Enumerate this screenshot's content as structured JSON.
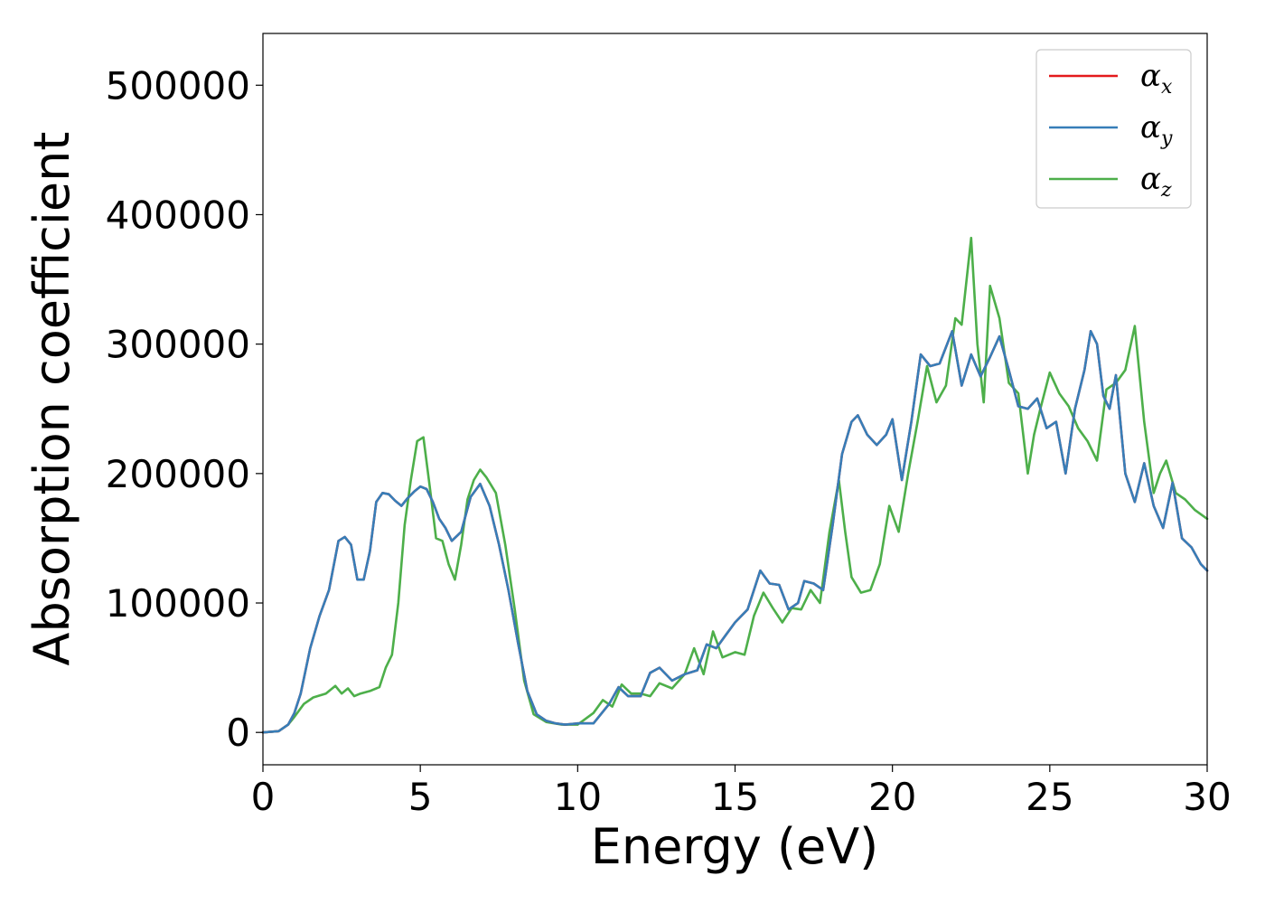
{
  "chart_data": {
    "type": "line",
    "xlabel": "Energy (eV)",
    "ylabel": "Absorption coefficient",
    "xlim": [
      0,
      30
    ],
    "ylim": [
      -25000,
      540000
    ],
    "x_ticks": [
      "0",
      "5",
      "10",
      "15",
      "20",
      "25",
      "30"
    ],
    "y_ticks": [
      "0",
      "100000",
      "200000",
      "300000",
      "400000",
      "500000"
    ],
    "grid": false,
    "legend_position": "top-right",
    "series": [
      {
        "name": "α_x",
        "legend_symbol": "α",
        "legend_subscript": "x",
        "color": "#e41a1c",
        "x": [
          0,
          0.5,
          0.8,
          1.0,
          1.2,
          1.5,
          1.8,
          2.1,
          2.4,
          2.6,
          2.8,
          3.0,
          3.2,
          3.4,
          3.6,
          3.8,
          4.0,
          4.2,
          4.4,
          4.6,
          4.8,
          5.0,
          5.2,
          5.4,
          5.6,
          5.8,
          6.0,
          6.3,
          6.6,
          6.9,
          7.2,
          7.5,
          7.8,
          8.1,
          8.4,
          8.7,
          9.0,
          9.3,
          9.6,
          10.0,
          10.5,
          11.0,
          11.3,
          11.6,
          12.0,
          12.3,
          12.6,
          13.0,
          13.4,
          13.8,
          14.1,
          14.4,
          14.7,
          15.0,
          15.4,
          15.8,
          16.1,
          16.4,
          16.7,
          17.0,
          17.2,
          17.5,
          17.8,
          18.1,
          18.4,
          18.7,
          18.9,
          19.2,
          19.5,
          19.8,
          20.0,
          20.3,
          20.6,
          20.9,
          21.2,
          21.5,
          21.9,
          22.2,
          22.5,
          22.8,
          23.1,
          23.4,
          23.7,
          24.0,
          24.3,
          24.6,
          24.9,
          25.2,
          25.5,
          25.8,
          26.1,
          26.3,
          26.5,
          26.7,
          26.9,
          27.1,
          27.4,
          27.7,
          28.0,
          28.3,
          28.6,
          28.9,
          29.2,
          29.5,
          29.8,
          30.0
        ],
        "y": [
          0,
          1000,
          6000,
          15000,
          30000,
          65000,
          90000,
          110000,
          148000,
          151000,
          145000,
          118000,
          118000,
          140000,
          178000,
          185000,
          184000,
          179000,
          175000,
          181000,
          186000,
          190000,
          188000,
          178000,
          165000,
          158000,
          148000,
          155000,
          182000,
          192000,
          175000,
          145000,
          110000,
          70000,
          32000,
          14000,
          9000,
          7000,
          6000,
          7000,
          7000,
          22000,
          35000,
          28000,
          28000,
          46000,
          50000,
          40000,
          45000,
          48000,
          68000,
          65000,
          75000,
          85000,
          95000,
          125000,
          115000,
          114000,
          95000,
          100000,
          117000,
          115000,
          110000,
          160000,
          215000,
          240000,
          245000,
          230000,
          222000,
          230000,
          242000,
          195000,
          240000,
          292000,
          283000,
          285000,
          310000,
          268000,
          292000,
          275000,
          290000,
          306000,
          280000,
          252000,
          250000,
          258000,
          235000,
          240000,
          200000,
          250000,
          280000,
          310000,
          300000,
          260000,
          250000,
          276000,
          200000,
          178000,
          208000,
          175000,
          158000,
          193000,
          150000,
          143000,
          130000,
          125000
        ]
      },
      {
        "name": "α_y",
        "legend_symbol": "α",
        "legend_subscript": "y",
        "color": "#377eb8",
        "x": [
          0,
          0.5,
          0.8,
          1.0,
          1.2,
          1.5,
          1.8,
          2.1,
          2.4,
          2.6,
          2.8,
          3.0,
          3.2,
          3.4,
          3.6,
          3.8,
          4.0,
          4.2,
          4.4,
          4.6,
          4.8,
          5.0,
          5.2,
          5.4,
          5.6,
          5.8,
          6.0,
          6.3,
          6.6,
          6.9,
          7.2,
          7.5,
          7.8,
          8.1,
          8.4,
          8.7,
          9.0,
          9.3,
          9.6,
          10.0,
          10.5,
          11.0,
          11.3,
          11.6,
          12.0,
          12.3,
          12.6,
          13.0,
          13.4,
          13.8,
          14.1,
          14.4,
          14.7,
          15.0,
          15.4,
          15.8,
          16.1,
          16.4,
          16.7,
          17.0,
          17.2,
          17.5,
          17.8,
          18.1,
          18.4,
          18.7,
          18.9,
          19.2,
          19.5,
          19.8,
          20.0,
          20.3,
          20.6,
          20.9,
          21.2,
          21.5,
          21.9,
          22.2,
          22.5,
          22.8,
          23.1,
          23.4,
          23.7,
          24.0,
          24.3,
          24.6,
          24.9,
          25.2,
          25.5,
          25.8,
          26.1,
          26.3,
          26.5,
          26.7,
          26.9,
          27.1,
          27.4,
          27.7,
          28.0,
          28.3,
          28.6,
          28.9,
          29.2,
          29.5,
          29.8,
          30.0
        ],
        "y": [
          0,
          1000,
          6000,
          15000,
          30000,
          65000,
          90000,
          110000,
          148000,
          151000,
          145000,
          118000,
          118000,
          140000,
          178000,
          185000,
          184000,
          179000,
          175000,
          181000,
          186000,
          190000,
          188000,
          178000,
          165000,
          158000,
          148000,
          155000,
          182000,
          192000,
          175000,
          145000,
          110000,
          70000,
          32000,
          14000,
          9000,
          7000,
          6000,
          7000,
          7000,
          22000,
          35000,
          28000,
          28000,
          46000,
          50000,
          40000,
          45000,
          48000,
          68000,
          65000,
          75000,
          85000,
          95000,
          125000,
          115000,
          114000,
          95000,
          100000,
          117000,
          115000,
          110000,
          160000,
          215000,
          240000,
          245000,
          230000,
          222000,
          230000,
          242000,
          195000,
          240000,
          292000,
          283000,
          285000,
          310000,
          268000,
          292000,
          275000,
          290000,
          306000,
          280000,
          252000,
          250000,
          258000,
          235000,
          240000,
          200000,
          250000,
          280000,
          310000,
          300000,
          260000,
          250000,
          276000,
          200000,
          178000,
          208000,
          175000,
          158000,
          193000,
          150000,
          143000,
          130000,
          125000
        ]
      },
      {
        "name": "α_z",
        "legend_symbol": "α",
        "legend_subscript": "z",
        "color": "#4daf4a",
        "x": [
          0,
          0.5,
          0.8,
          1.0,
          1.3,
          1.6,
          2.0,
          2.3,
          2.5,
          2.7,
          2.9,
          3.1,
          3.4,
          3.7,
          3.9,
          4.1,
          4.3,
          4.5,
          4.7,
          4.9,
          5.1,
          5.3,
          5.5,
          5.7,
          5.9,
          6.1,
          6.3,
          6.5,
          6.7,
          6.9,
          7.1,
          7.4,
          7.7,
          8.0,
          8.3,
          8.6,
          9.0,
          9.5,
          10.0,
          10.5,
          10.8,
          11.1,
          11.4,
          11.7,
          12.0,
          12.3,
          12.6,
          13.0,
          13.4,
          13.7,
          14.0,
          14.3,
          14.6,
          15.0,
          15.3,
          15.6,
          15.9,
          16.2,
          16.5,
          16.8,
          17.1,
          17.4,
          17.7,
          18.0,
          18.3,
          18.5,
          18.7,
          19.0,
          19.3,
          19.6,
          19.9,
          20.2,
          20.5,
          20.8,
          21.1,
          21.4,
          21.7,
          22.0,
          22.2,
          22.5,
          22.7,
          22.9,
          23.1,
          23.4,
          23.7,
          24.0,
          24.3,
          24.5,
          24.7,
          25.0,
          25.3,
          25.6,
          25.9,
          26.2,
          26.5,
          26.8,
          27.1,
          27.4,
          27.7,
          28.0,
          28.3,
          28.5,
          28.7,
          29.0,
          29.3,
          29.6,
          30.0
        ],
        "y": [
          0,
          1000,
          6000,
          12000,
          22000,
          27000,
          30000,
          36000,
          30000,
          34000,
          28000,
          30000,
          32000,
          35000,
          50000,
          60000,
          100000,
          160000,
          195000,
          225000,
          228000,
          190000,
          150000,
          148000,
          130000,
          118000,
          145000,
          180000,
          195000,
          203000,
          197000,
          185000,
          145000,
          95000,
          40000,
          14000,
          8000,
          6000,
          6000,
          15000,
          25000,
          20000,
          37000,
          30000,
          30000,
          28000,
          38000,
          34000,
          45000,
          65000,
          45000,
          78000,
          58000,
          62000,
          60000,
          90000,
          108000,
          96000,
          85000,
          96000,
          95000,
          110000,
          100000,
          155000,
          195000,
          155000,
          120000,
          108000,
          110000,
          130000,
          175000,
          155000,
          200000,
          240000,
          283000,
          255000,
          268000,
          320000,
          315000,
          382000,
          300000,
          255000,
          345000,
          320000,
          270000,
          262000,
          200000,
          230000,
          250000,
          278000,
          262000,
          252000,
          235000,
          225000,
          210000,
          265000,
          270000,
          280000,
          314000,
          240000,
          185000,
          200000,
          210000,
          185000,
          180000,
          172000,
          165000
        ]
      }
    ]
  }
}
